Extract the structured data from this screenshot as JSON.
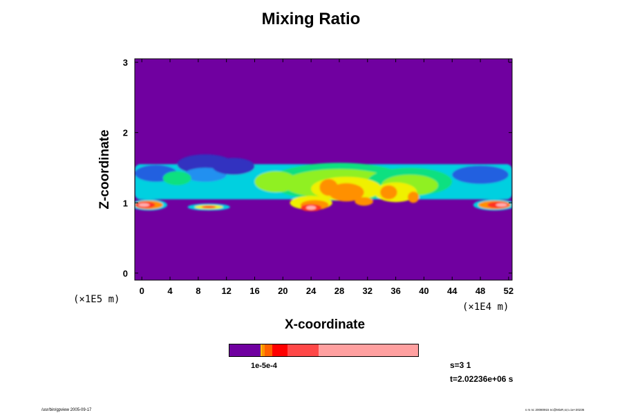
{
  "title": "Mixing Ratio",
  "footer": {
    "left": "/usr/bin/gpview 2005-09-17",
    "right": "s rs nc 20080915 nc@MixR,sr,t=1e+20236"
  },
  "info": {
    "step": "s=3 1",
    "time": "t=2.02236e+06 s"
  },
  "colorbar": {
    "label": "1e-5e-4",
    "colors": [
      "#7000a0",
      "#ffc000",
      "#ff9000",
      "#ff6000",
      "#ff0000",
      "#ff4848",
      "#ffa0a0"
    ],
    "fractions": [
      0.165,
      0.008,
      0.015,
      0.04,
      0.08,
      0.165,
      0.527
    ]
  },
  "chart_data": {
    "type": "heatmap",
    "title": "Mixing Ratio",
    "xlabel": "X-coordinate",
    "ylabel": "Z-coordinate",
    "x_unit": "(×1E4 m)",
    "y_unit": "(×1E5 m)",
    "xlim": [
      -1,
      52.5
    ],
    "ylim": [
      -0.1,
      3.05
    ],
    "x_ticks": [
      "0",
      "4",
      "8",
      "12",
      "16",
      "20",
      "24",
      "28",
      "32",
      "36",
      "40",
      "44",
      "48",
      "52"
    ],
    "y_ticks": [
      "0",
      "1",
      "2",
      "3"
    ],
    "x_tick_values": [
      0,
      4,
      8,
      12,
      16,
      20,
      24,
      28,
      32,
      36,
      40,
      44,
      48,
      52
    ],
    "y_tick_values": [
      0,
      1,
      2,
      3
    ],
    "background_color": "#7000a0",
    "palette": {
      "violet": "#7000a0",
      "darkblue": "#3030c0",
      "blue": "#2060e0",
      "lightblue": "#2090f0",
      "cyan": "#00d0e0",
      "green": "#10e080",
      "lime": "#90f020",
      "yellow": "#f0f000",
      "orange": "#ff9000",
      "red": "#ff3020",
      "pink": "#ffb0b0"
    },
    "features": [
      {
        "kind": "band",
        "x0": -1,
        "x1": 52.5,
        "z_bottom": 1.05,
        "z_top": 1.55,
        "color": "cyan"
      },
      {
        "kind": "blob",
        "x": 2,
        "z": 1.42,
        "rx": 3,
        "rz": 0.12,
        "color": "blue"
      },
      {
        "kind": "blob",
        "x": 9,
        "z": 1.55,
        "rx": 4,
        "rz": 0.14,
        "color": "darkblue"
      },
      {
        "kind": "blob",
        "x": 9,
        "z": 1.4,
        "rx": 3,
        "rz": 0.1,
        "color": "lightblue"
      },
      {
        "kind": "blob",
        "x": 13,
        "z": 1.52,
        "rx": 3,
        "rz": 0.12,
        "color": "darkblue"
      },
      {
        "kind": "blob",
        "x": 5,
        "z": 1.35,
        "rx": 2,
        "rz": 0.1,
        "color": "green"
      },
      {
        "kind": "blob",
        "x": 48,
        "z": 1.4,
        "rx": 4,
        "rz": 0.13,
        "color": "blue"
      },
      {
        "kind": "blob",
        "x": 28,
        "z": 1.3,
        "rx": 10,
        "rz": 0.27,
        "color": "green"
      },
      {
        "kind": "blob",
        "x": 28,
        "z": 1.27,
        "rx": 8,
        "rz": 0.21,
        "color": "lime"
      },
      {
        "kind": "blob",
        "x": 38,
        "z": 1.3,
        "rx": 6,
        "rz": 0.2,
        "color": "green"
      },
      {
        "kind": "blob",
        "x": 38,
        "z": 1.25,
        "rx": 4,
        "rz": 0.15,
        "color": "lime"
      },
      {
        "kind": "blob",
        "x": 19,
        "z": 1.3,
        "rx": 3,
        "rz": 0.15,
        "color": "lime"
      },
      {
        "kind": "blob",
        "x": 29,
        "z": 1.2,
        "rx": 5,
        "rz": 0.17,
        "color": "yellow"
      },
      {
        "kind": "blob",
        "x": 36,
        "z": 1.15,
        "rx": 3,
        "rz": 0.14,
        "color": "yellow"
      },
      {
        "kind": "blob",
        "x": 24,
        "z": 1.0,
        "rx": 3,
        "rz": 0.1,
        "color": "yellow"
      },
      {
        "kind": "blob",
        "x": 29,
        "z": 1.15,
        "rx": 2.5,
        "rz": 0.13,
        "color": "orange"
      },
      {
        "kind": "blob",
        "x": 26.5,
        "z": 1.22,
        "rx": 1.3,
        "rz": 0.12,
        "color": "orange"
      },
      {
        "kind": "blob",
        "x": 24.5,
        "z": 0.97,
        "rx": 2,
        "rz": 0.07,
        "color": "orange"
      },
      {
        "kind": "blob",
        "x": 35,
        "z": 1.15,
        "rx": 1.2,
        "rz": 0.1,
        "color": "orange"
      },
      {
        "kind": "blob",
        "x": 38.5,
        "z": 1.08,
        "rx": 0.8,
        "rz": 0.08,
        "color": "orange"
      },
      {
        "kind": "blob",
        "x": 31.5,
        "z": 1.02,
        "rx": 1.3,
        "rz": 0.06,
        "color": "orange"
      },
      {
        "kind": "blob",
        "x": 24,
        "z": 0.93,
        "rx": 1.5,
        "rz": 0.05,
        "color": "red"
      },
      {
        "kind": "blob",
        "x": 24,
        "z": 0.93,
        "rx": 0.7,
        "rz": 0.03,
        "color": "pink"
      },
      {
        "kind": "blob",
        "x": 1,
        "z": 0.97,
        "rx": 2.6,
        "rz": 0.08,
        "color": "cyan"
      },
      {
        "kind": "blob",
        "x": 1,
        "z": 0.97,
        "rx": 2.0,
        "rz": 0.06,
        "color": "orange"
      },
      {
        "kind": "blob",
        "x": 0.5,
        "z": 0.97,
        "rx": 1.4,
        "rz": 0.045,
        "color": "red"
      },
      {
        "kind": "blob",
        "x": 0.3,
        "z": 0.97,
        "rx": 0.8,
        "rz": 0.025,
        "color": "pink"
      },
      {
        "kind": "blob",
        "x": 50,
        "z": 0.97,
        "rx": 3,
        "rz": 0.08,
        "color": "cyan"
      },
      {
        "kind": "blob",
        "x": 50,
        "z": 0.97,
        "rx": 2.3,
        "rz": 0.06,
        "color": "orange"
      },
      {
        "kind": "blob",
        "x": 50.5,
        "z": 0.97,
        "rx": 1.5,
        "rz": 0.045,
        "color": "red"
      },
      {
        "kind": "blob",
        "x": 51,
        "z": 0.97,
        "rx": 0.8,
        "rz": 0.025,
        "color": "pink"
      },
      {
        "kind": "blob",
        "x": 9.5,
        "z": 0.94,
        "rx": 3,
        "rz": 0.05,
        "color": "cyan"
      },
      {
        "kind": "blob",
        "x": 9.5,
        "z": 0.94,
        "rx": 2,
        "rz": 0.03,
        "color": "yellow"
      },
      {
        "kind": "blob",
        "x": 9.5,
        "z": 0.94,
        "rx": 1,
        "rz": 0.018,
        "color": "red"
      }
    ]
  }
}
